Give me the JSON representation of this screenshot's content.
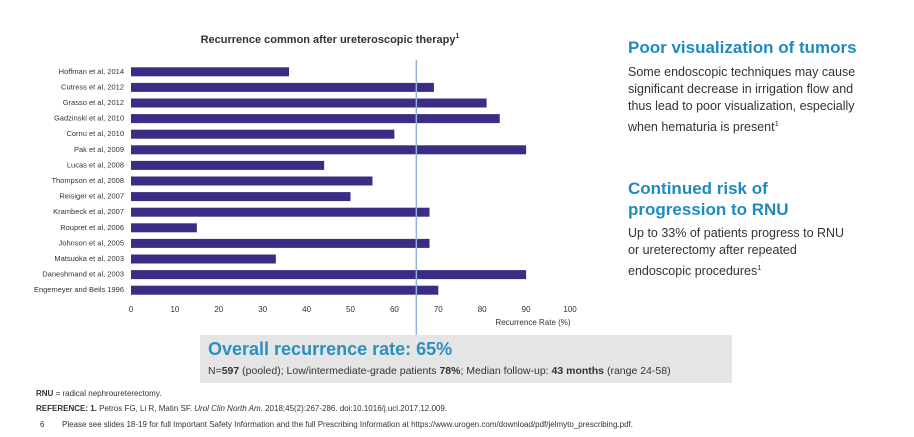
{
  "chart_data": {
    "type": "hbar",
    "title": [
      {
        "text": "Recurrence common after ureteroscopic therapy"
      },
      {
        "text": "1",
        "sup": true
      }
    ],
    "categories": [
      "Hoffman et al, 2014",
      "Cutress et al, 2012",
      "Grasso et al, 2012",
      "Gadzinski et al, 2010",
      "Cornu et al, 2010",
      "Pak et al, 2009",
      "Lucas et al, 2008",
      "Thompson et al, 2008",
      "Reisiger et al, 2007",
      "Krambeck et al, 2007",
      "Roupret et al, 2006",
      "Johnson et al, 2005",
      "Matsuoka et al, 2003",
      "Daneshmand et al, 2003",
      "Engemeyer and Beils 1996"
    ],
    "values": [
      36,
      69,
      81,
      84,
      60,
      90,
      44,
      55,
      50,
      68,
      15,
      68,
      33,
      90,
      70
    ],
    "color": "#3a2d85",
    "xlim": [
      0,
      100
    ],
    "xticks": [
      0,
      10,
      20,
      30,
      40,
      50,
      60,
      70,
      80,
      90,
      100
    ],
    "xlabel": "Recurrence Rate (%)",
    "reference_line": 65,
    "reference_color": "#8fb4da"
  },
  "summary": {
    "heading": "Overall recurrence rate: 65%",
    "detail": [
      {
        "text": "N="
      },
      {
        "text": "597",
        "bold": true
      },
      {
        "text": " (pooled); Low/intermediate-grade patients "
      },
      {
        "text": "78%",
        "bold": true
      },
      {
        "text": "; Median follow-up: "
      },
      {
        "text": "43 months",
        "bold": true
      },
      {
        "text": " (range 24-58)"
      }
    ]
  },
  "panels": [
    {
      "heading": "Poor visualization of tumors",
      "body": [
        {
          "text": "Some endoscopic techniques may cause significant decrease in irrigation flow and thus lead to poor visualization, especially when hematuria is present"
        },
        {
          "text": "1",
          "sup": true
        }
      ]
    },
    {
      "heading": "Continued risk of progression to RNU",
      "body": [
        {
          "text": "Up to 33% of patients progress to RNU or ureterectomy after repeated endoscopic procedures"
        },
        {
          "text": "1",
          "sup": true
        }
      ]
    }
  ],
  "footer": {
    "abbreviation": [
      {
        "text": "RNU",
        "bold": true
      },
      {
        "text": " = radical nephroureterectomy."
      }
    ],
    "reference": [
      {
        "text": "REFERENCE: 1.",
        "bold": true
      },
      {
        "text": " Petros FG, Li R, Matin SF. "
      },
      {
        "text": "Urol Clin North Am.",
        "italic": true
      },
      {
        "text": " 2018;45(2):267-286. doi:10.1016/j.ucl.2017.12.009."
      }
    ],
    "page_number": "6",
    "notice": "Please see slides 18-19 for full Important Safety Information and the full Prescribing Information at https://www.urogen.com/download/pdf/jelmyto_prescribing.pdf."
  }
}
